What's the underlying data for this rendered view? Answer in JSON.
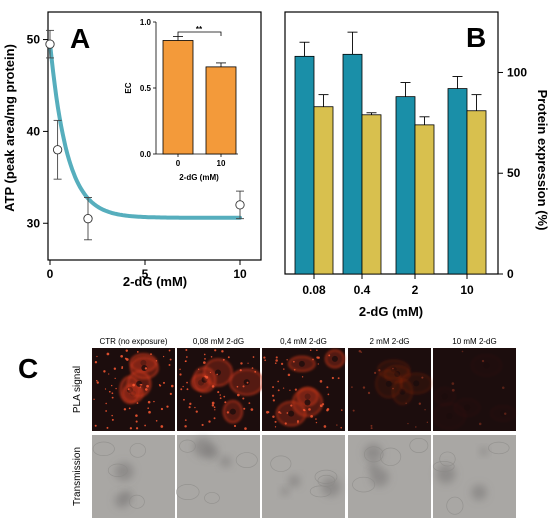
{
  "colors": {
    "curve": "#56aebd",
    "bar_teal": "#1a8fa8",
    "bar_yellow": "#d8c04e",
    "bar_orange": "#f39a3a",
    "pla_signal": "#c8361c",
    "pla_background": "#1c0d0d",
    "transmission": "#a9a7a4"
  },
  "chart_data": [
    {
      "panel": "A",
      "type": "scatter",
      "letter": "A",
      "xlabel": "2-dG (mM)",
      "ylabel": "ATP (peak area/mg protein)",
      "xlim": [
        0,
        11
      ],
      "ylim": [
        26,
        53
      ],
      "xticks": [
        0,
        5,
        10
      ],
      "yticks": [
        30,
        40,
        50
      ],
      "points": [
        {
          "x": 0,
          "y": 49.5,
          "err": 1.5
        },
        {
          "x": 0.4,
          "y": 38.0,
          "err": 3.2
        },
        {
          "x": 2,
          "y": 30.5,
          "err": 2.3
        },
        {
          "x": 10,
          "y": 32.0,
          "err": 1.5
        }
      ],
      "fit": {
        "type": "exponential decay",
        "plateau": 30.6,
        "span": 19.0,
        "k": 1.1,
        "line_color": "#56aebd"
      },
      "inset": {
        "type": "bar",
        "xlabel": "2-dG (mM)",
        "ylabel": "EC",
        "categories": [
          "0",
          "10"
        ],
        "values": [
          0.86,
          0.66
        ],
        "errors": [
          0.03,
          0.03
        ],
        "ylim": [
          0,
          1.0
        ],
        "yticks": [
          "0.0",
          "0.5",
          "1.0"
        ],
        "significance": "**"
      }
    },
    {
      "panel": "B",
      "type": "bar",
      "letter": "B",
      "xlabel": "2-dG (mM)",
      "ylabel": "Protein expression (%)",
      "categories": [
        "0.08",
        "0.4",
        "2",
        "10"
      ],
      "ylim": [
        0,
        130
      ],
      "yticks": [
        0,
        50,
        100
      ],
      "series": [
        {
          "values": [
            108,
            109,
            88,
            92
          ],
          "errors": [
            7,
            11,
            7,
            6
          ],
          "color": "#1a8fa8"
        },
        {
          "values": [
            83,
            79,
            74,
            81
          ],
          "errors": [
            6,
            1,
            4,
            8
          ],
          "color": "#d8c04e"
        }
      ]
    }
  ],
  "panel_c": {
    "letter": "C",
    "columns": [
      "CTR (no exposure)",
      "0,08 mM 2-dG",
      "0,4 mM 2-dG",
      "2 mM 2-dG",
      "10 mM 2-dG"
    ],
    "rows": [
      "PLA signal",
      "Transmission"
    ],
    "pla_intensity": [
      1.0,
      0.95,
      0.9,
      0.25,
      0.05
    ]
  }
}
